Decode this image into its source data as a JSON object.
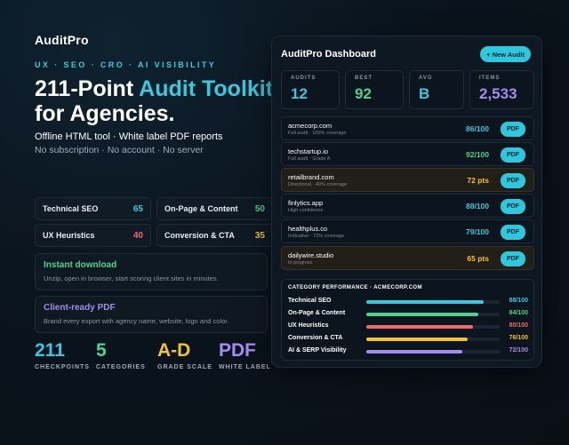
{
  "brand": {
    "logo": "AuditPro"
  },
  "hero": {
    "tagline": "UX · SEO · CRO · AI VISIBILITY",
    "headline_part1": "211-Point ",
    "headline_accent": "Audit Toolkit",
    "headline_part2": "for Agencies.",
    "sub1": "Offline HTML tool · White label PDF reports",
    "sub2": "No subscription · No account · No server"
  },
  "categories": [
    {
      "label": "Technical SEO",
      "value": "65",
      "color": "#3cc8dc"
    },
    {
      "label": "On-Page & Content",
      "value": "50",
      "color": "#4fd38f"
    },
    {
      "label": "UX Heuristics",
      "value": "40",
      "color": "#f06a6a"
    },
    {
      "label": "Conversion & CTA",
      "value": "35",
      "color": "#f2c230"
    }
  ],
  "features": [
    {
      "title": "Instant download",
      "desc": "Unzip, open in browser, start scoring client sites in minutes.",
      "color": "#4fd38f"
    },
    {
      "title": "Client-ready PDF",
      "desc": "Brand every export with agency name, website, logo and color.",
      "color": "#a48cf0"
    }
  ],
  "stats": [
    {
      "number": "211",
      "label": "CHECKPOINTS",
      "color": "#3cc8dc"
    },
    {
      "number": "5",
      "label": "CATEGORIES",
      "color": "#4fd38f"
    },
    {
      "number": "A-D",
      "label": "GRADE SCALE",
      "color": "#f2c230"
    },
    {
      "number": "PDF",
      "label": "WHITE LABEL",
      "color": "#a48cf0"
    }
  ],
  "dashboard": {
    "title": "AuditPro Dashboard",
    "new_button": "+ New Audit",
    "kpis": [
      {
        "label": "AUDITS",
        "value": "12",
        "color": "#3cc8dc"
      },
      {
        "label": "BEST",
        "value": "92",
        "color": "#4fd38f"
      },
      {
        "label": "AVG",
        "value": "B",
        "color": "#3cc8dc"
      },
      {
        "label": "ITEMS",
        "value": "2,533",
        "color": "#a48cf0"
      }
    ],
    "audits": [
      {
        "name": "acmecorp.com",
        "sub": "Full audit · 100% coverage",
        "score": "86/100",
        "color": "#3cc8dc",
        "highlight": false,
        "action": "PDF"
      },
      {
        "name": "techstartup.io",
        "sub": "Full audit · Grade A",
        "score": "92/100",
        "color": "#4fd38f",
        "highlight": false,
        "action": "PDF"
      },
      {
        "name": "retailbrand.com",
        "sub": "Directional · 40% coverage",
        "score": "72 pts",
        "color": "#f2c230",
        "highlight": true,
        "action": "PDF"
      },
      {
        "name": "finlytics.app",
        "sub": "High confidence",
        "score": "88/100",
        "color": "#3cc8dc",
        "highlight": false,
        "action": "PDF"
      },
      {
        "name": "healthplus.co",
        "sub": "Indicative · 72% coverage",
        "score": "79/100",
        "color": "#3cc8dc",
        "highlight": false,
        "action": "PDF"
      },
      {
        "name": "dailywire.studio",
        "sub": "In progress",
        "score": "65 pts",
        "color": "#f2c230",
        "highlight": true,
        "action": "PDF"
      }
    ],
    "category_performance": {
      "heading": "CATEGORY PERFORMANCE · ACMECORP.COM",
      "rows": [
        {
          "label": "Technical SEO",
          "value": "88/100",
          "fraction": 0.88,
          "color": "#3cc8dc"
        },
        {
          "label": "On-Page & Content",
          "value": "84/100",
          "fraction": 0.84,
          "color": "#4fd38f"
        },
        {
          "label": "UX Heuristics",
          "value": "80/100",
          "fraction": 0.8,
          "color": "#f06a6a"
        },
        {
          "label": "Conversion & CTA",
          "value": "76/100",
          "fraction": 0.76,
          "color": "#f2c230"
        },
        {
          "label": "AI & SERP Visibility",
          "value": "72/100",
          "fraction": 0.72,
          "color": "#a48cf0"
        }
      ]
    }
  }
}
